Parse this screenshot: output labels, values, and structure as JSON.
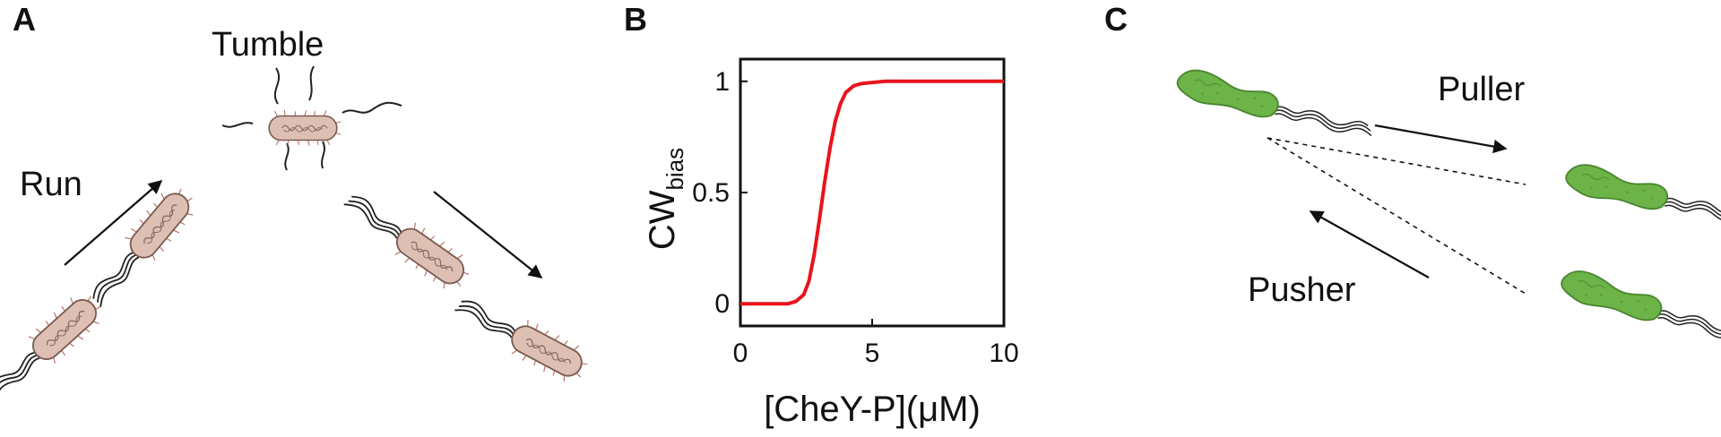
{
  "panels": {
    "a": {
      "label": "A",
      "tumble": "Tumble",
      "run": "Run"
    },
    "b": {
      "label": "B",
      "chart_data": {
        "type": "line",
        "xlabel": "[CheY-P](μM)",
        "ylabel_main": "CW",
        "ylabel_sub": "bias",
        "xlim": [
          0,
          10
        ],
        "ylim": [
          -0.1,
          1.1
        ],
        "xticks": [
          0,
          5,
          10
        ],
        "xtick_labels": [
          "0",
          "5",
          "10"
        ],
        "yticks": [
          0,
          0.5,
          1
        ],
        "ytick_labels": [
          "0",
          "0.5",
          "1"
        ],
        "grid": false,
        "series": [
          {
            "color": "#e8141c",
            "x": [
              0,
              1.8,
              2.1,
              2.4,
              2.6,
              2.8,
              3.0,
              3.2,
              3.4,
              3.6,
              3.8,
              4.0,
              4.3,
              4.6,
              5.0,
              5.5,
              6.0,
              7.0,
              8.0,
              10.0
            ],
            "y": [
              0,
              0,
              0.01,
              0.04,
              0.1,
              0.22,
              0.38,
              0.55,
              0.7,
              0.82,
              0.9,
              0.95,
              0.98,
              0.99,
              0.995,
              1,
              1,
              1,
              1,
              1
            ]
          }
        ]
      }
    },
    "c": {
      "label": "C",
      "puller": "Puller",
      "pusher": "Pusher"
    },
    "colors": {
      "ecoli_body": "#ddbfb3",
      "ecoli_outline": "#7a5a50",
      "ecoli_pili": "#b8665a",
      "green_body": "#6cb348",
      "green_outline": "#4a8530",
      "curve": "#e8141c"
    }
  }
}
